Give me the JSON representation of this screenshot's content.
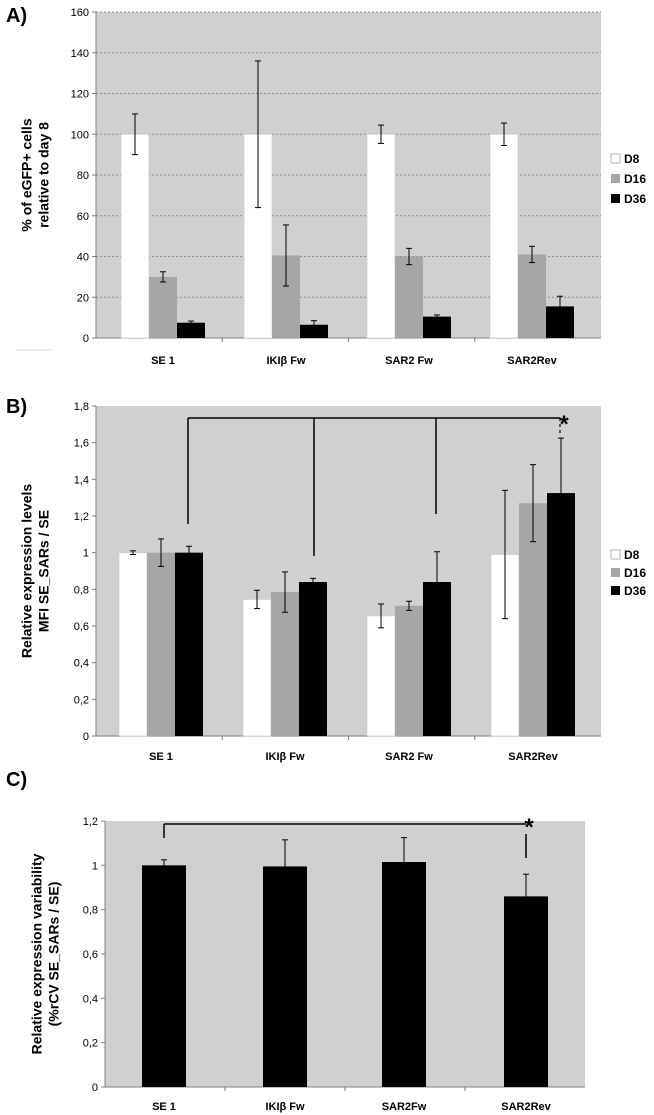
{
  "chart_data": [
    {
      "panel": "A)",
      "type": "bar",
      "ylabel_lines": [
        "% of eGFP+ cells",
        "relative to day 8"
      ],
      "xlabel": "",
      "ylim": [
        0,
        160
      ],
      "yticks": [
        0,
        20,
        40,
        60,
        80,
        100,
        120,
        140,
        160
      ],
      "ytick_labels": [
        "0",
        "20",
        "40",
        "60",
        "80",
        "100",
        "120",
        "140",
        "160"
      ],
      "grid": true,
      "categories": [
        "SE 1",
        "IKIβ Fw",
        "SAR2 Fw",
        "SAR2Rev"
      ],
      "series": [
        {
          "name": "D8",
          "color": "#ffffff",
          "values": [
            100,
            100,
            100,
            100
          ],
          "errors": [
            10,
            36,
            4.5,
            5.5
          ]
        },
        {
          "name": "D16",
          "color": "#a6a6a6",
          "values": [
            30,
            40.5,
            40,
            41
          ],
          "errors": [
            2.5,
            15,
            4,
            4
          ]
        },
        {
          "name": "D36",
          "color": "#000000",
          "values": [
            7.5,
            6.5,
            10.5,
            15.5
          ],
          "errors": [
            0.8,
            2,
            0.8,
            5
          ]
        }
      ],
      "legend": [
        "D8",
        "D16",
        "D36"
      ],
      "legend_position": "right",
      "annotations": []
    },
    {
      "panel": "B)",
      "type": "bar",
      "ylabel_lines": [
        "Relative expression levels",
        "MFI SE_SARs / SE"
      ],
      "xlabel": "",
      "ylim": [
        0,
        1.8
      ],
      "yticks": [
        0,
        0.2,
        0.4,
        0.6,
        0.8,
        1.0,
        1.2,
        1.4,
        1.6,
        1.8
      ],
      "ytick_labels": [
        "0",
        "0,2",
        "0,4",
        "0,6",
        "0,8",
        "1",
        "1,2",
        "1,4",
        "1,6",
        "1,8"
      ],
      "grid": false,
      "categories": [
        "SE 1",
        "IKIβ Fw",
        "SAR2 Fw",
        "SAR2Rev"
      ],
      "series": [
        {
          "name": "D8",
          "color": "#ffffff",
          "values": [
            1.0,
            0.745,
            0.655,
            0.99
          ],
          "errors": [
            0.01,
            0.05,
            0.065,
            0.35
          ]
        },
        {
          "name": "D16",
          "color": "#a6a6a6",
          "values": [
            1.0,
            0.785,
            0.71,
            1.27
          ],
          "errors": [
            0.075,
            0.11,
            0.025,
            0.21
          ]
        },
        {
          "name": "D36",
          "color": "#000000",
          "values": [
            1.0,
            0.84,
            0.84,
            1.325
          ],
          "errors": [
            0.035,
            0.02,
            0.165,
            0.3
          ]
        }
      ],
      "legend": [
        "D8",
        "D16",
        "D36"
      ],
      "legend_position": "right",
      "annotations": [
        "*"
      ]
    },
    {
      "panel": "C)",
      "type": "bar",
      "ylabel_lines": [
        "Relative expression variability",
        "(%rCV SE_SARs / SE)"
      ],
      "xlabel": "",
      "ylim": [
        0,
        1.2
      ],
      "yticks": [
        0,
        0.2,
        0.4,
        0.6,
        0.8,
        1.0,
        1.2
      ],
      "ytick_labels": [
        "0",
        "0,2",
        "0,4",
        "0,6",
        "0,8",
        "1",
        "1,2"
      ],
      "grid": false,
      "categories": [
        "SE 1",
        "IKIβ Fw",
        "SAR2Fw",
        "SAR2Rev"
      ],
      "series": [
        {
          "name": "rCV",
          "color": "#000000",
          "values": [
            1.0,
            0.995,
            1.015,
            0.86
          ],
          "errors": [
            0.025,
            0.12,
            0.11,
            0.1
          ]
        }
      ],
      "legend": [],
      "legend_position": "none",
      "annotations": [
        "*"
      ]
    }
  ]
}
